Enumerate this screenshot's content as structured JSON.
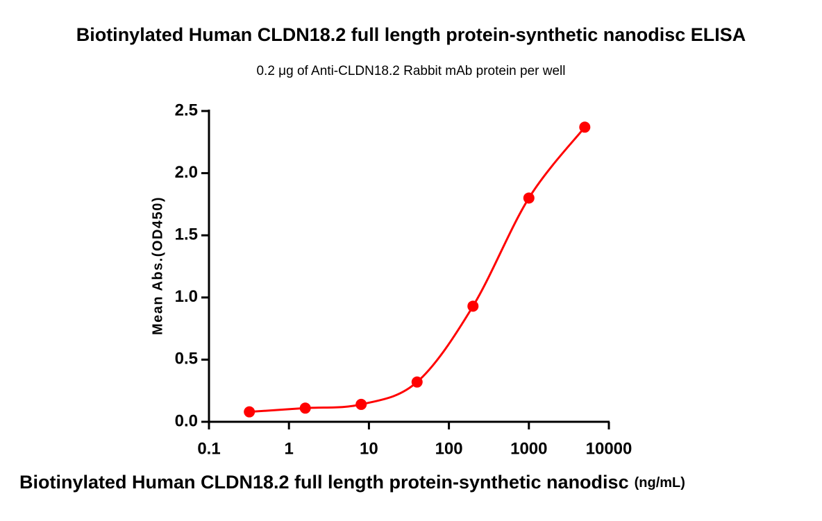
{
  "chart_data": {
    "type": "line",
    "title": "Biotinylated Human CLDN18.2 full length protein-synthetic nanodisc ELISA",
    "subtitle": "0.2 μg of Anti-CLDN18.2 Rabbit mAb protein per well",
    "xlabel": "Biotinylated Human CLDN18.2 full length protein-synthetic nanodisc",
    "xlabel_unit": "(ng/mL)",
    "ylabel": "Mean Abs.(OD450)",
    "x": [
      0.32,
      1.6,
      8,
      40,
      200,
      1000,
      5000
    ],
    "series": [
      {
        "color": "#ff0000",
        "values": [
          0.08,
          0.11,
          0.14,
          0.32,
          0.93,
          1.8,
          2.37
        ]
      }
    ],
    "xscale": "log",
    "xlim": [
      0.1,
      10000
    ],
    "xticks": [
      0.1,
      1,
      10,
      100,
      1000,
      10000
    ],
    "ylim": [
      0,
      2.5
    ],
    "yticks": [
      {
        "value": 0,
        "label": "0.0"
      },
      0.5,
      {
        "value": 1,
        "label": "1.0"
      },
      1.5,
      {
        "value": 2,
        "label": "2.0"
      },
      2.5
    ],
    "grid": false
  }
}
